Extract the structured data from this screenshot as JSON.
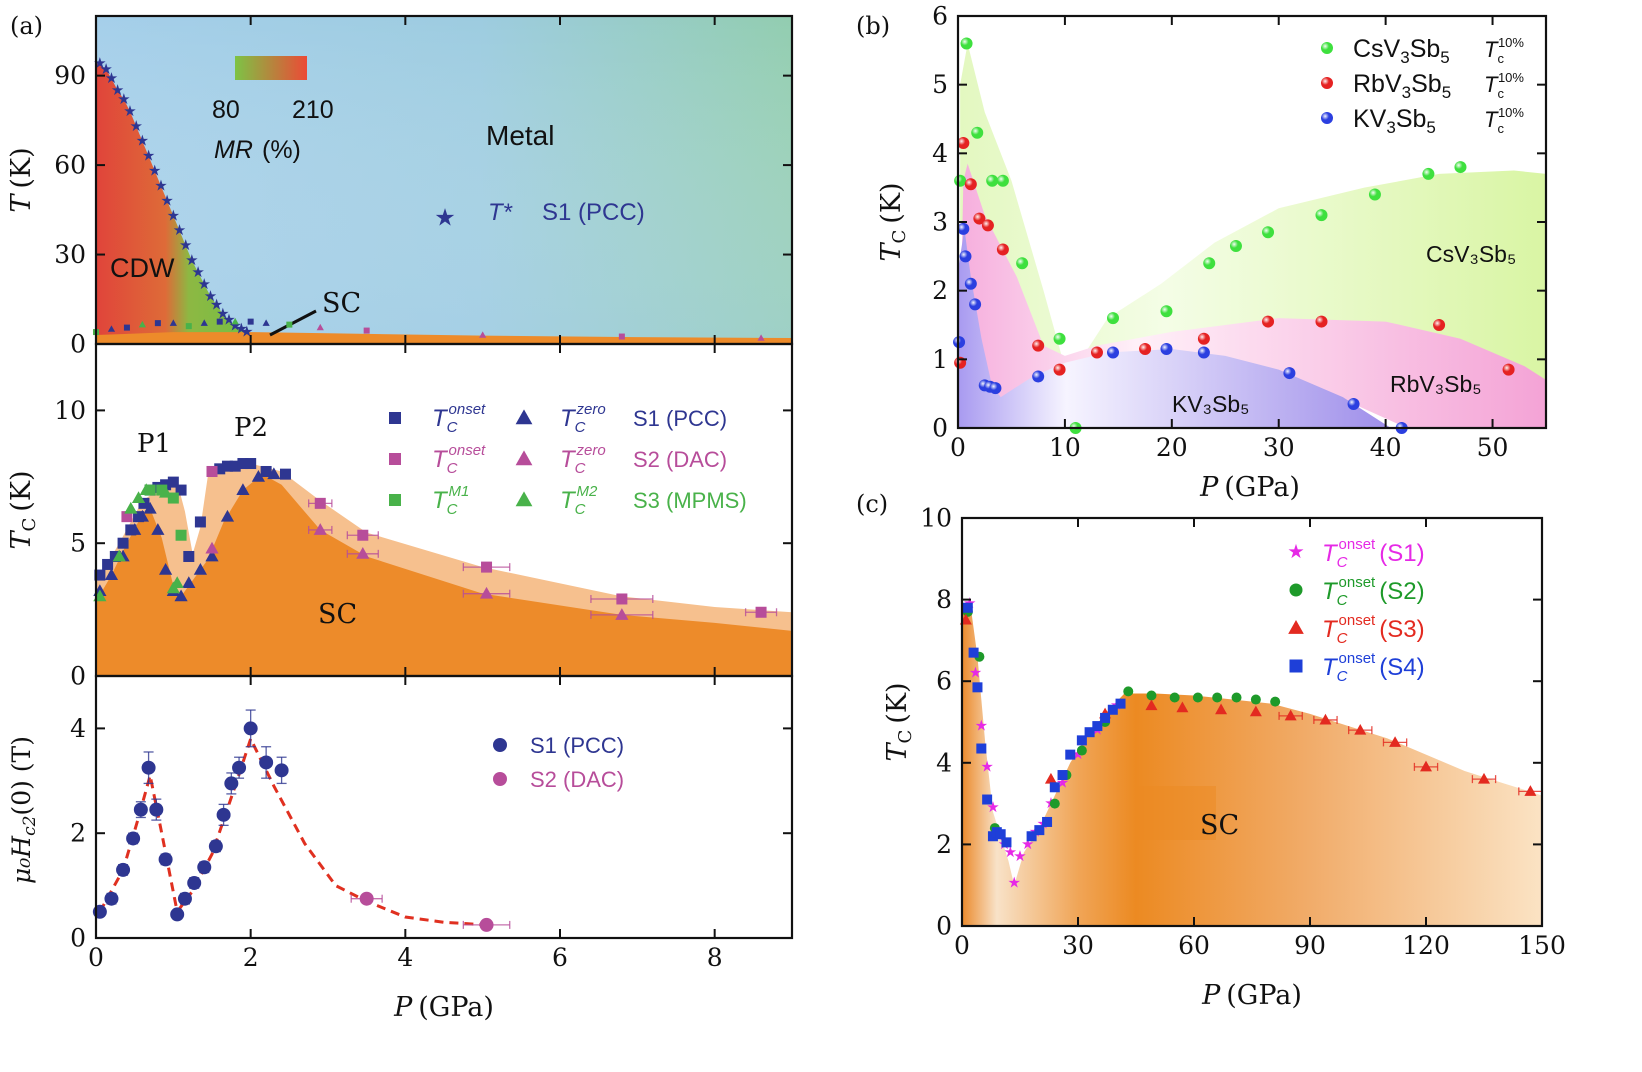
{
  "colors": {
    "sc_orange": "#ED8B2A",
    "sc_light": "#F6C08E",
    "metal_blue": "#A7CDE6",
    "metal_green": "#94CDB1",
    "cdw_red": "#E0523A",
    "cdw_green": "#7DBF45",
    "s1": "#2E3691",
    "s2": "#B74D9A",
    "s3": "#49B24A",
    "cs_green": "#3EE03E",
    "rb_red": "#E52222",
    "k_blue": "#2B3FE0",
    "c_s1": "#E629E6",
    "c_s2": "#1E9A2A",
    "c_s3": "#E32A20",
    "c_s4": "#1E3FD8",
    "dash_red": "#E03020"
  },
  "panel_labels": {
    "a": "(a)",
    "b": "(b)",
    "c": "(c)"
  },
  "chart_data": [
    {
      "id": "a_top",
      "type": "scatter",
      "xlim": [
        0,
        9
      ],
      "ylim": [
        0,
        110
      ],
      "ylabel_italic": "T",
      "ylabel_rest": "(K)",
      "yticks": [
        0,
        30,
        60,
        90
      ],
      "colorbar": {
        "min_label": "80",
        "max_label": "210",
        "title_italic": "MR",
        "title_rest": "(%)"
      },
      "region_labels": {
        "metal": "Metal",
        "cdw": "CDW",
        "sc": "SC"
      },
      "legend": {
        "symbol_label": "T*",
        "sample": "S1 (PCC)"
      },
      "tstar": {
        "x": [
          0.05,
          0.13,
          0.2,
          0.28,
          0.36,
          0.44,
          0.52,
          0.6,
          0.68,
          0.76,
          0.84,
          0.92,
          1.0,
          1.08,
          1.16,
          1.24,
          1.32,
          1.4,
          1.48,
          1.56,
          1.64,
          1.72,
          1.8,
          1.88,
          1.95
        ],
        "y": [
          94,
          92,
          89,
          85,
          82,
          78,
          73,
          68,
          63,
          58,
          53,
          48,
          43,
          38,
          33,
          28,
          24,
          20,
          16,
          13,
          10,
          8,
          6,
          5,
          4
        ]
      },
      "sc_line": {
        "x": [
          0,
          0.2,
          0.4,
          0.6,
          0.8,
          1.0,
          1.2,
          1.4,
          1.6,
          1.8,
          2.0,
          2.2,
          2.5,
          2.9,
          3.5,
          5.0,
          6.8,
          8.6
        ],
        "y": [
          4,
          5,
          5.5,
          6.5,
          7,
          7,
          6,
          7,
          7.5,
          7.5,
          7.5,
          7,
          6.5,
          5.5,
          4.5,
          3,
          2.5,
          2
        ]
      }
    },
    {
      "id": "a_mid",
      "type": "scatter",
      "xlim": [
        0,
        9
      ],
      "ylim": [
        0,
        12.5
      ],
      "ylabel_italic": "T",
      "ylabel_sub": "C",
      "ylabel_rest": "(K)",
      "yticks": [
        0,
        5,
        10
      ],
      "peak_labels": [
        "P1",
        "P2"
      ],
      "region_label": "SC",
      "legend": {
        "rows": [
          {
            "sym1": "square",
            "sub1": "C",
            "sup1": "onset",
            "sym2": "triangle",
            "sub2": "C",
            "sup2": "zero",
            "sample": "S1 (PCC)",
            "color": "#2E3691"
          },
          {
            "sym1": "square",
            "sub1": "C",
            "sup1": "onset",
            "sym2": "triangle",
            "sub2": "C",
            "sup2": "zero",
            "sample": "S2 (DAC)",
            "color": "#B74D9A"
          },
          {
            "sym1": "square",
            "sub1": "C",
            "sup1": "M1",
            "sym2": "triangle",
            "sub2": "C",
            "sup2": "M2",
            "sample": "S3 (MPMS)",
            "color": "#49B24A"
          }
        ]
      },
      "series": [
        {
          "name": "S1 onset",
          "marker": "square",
          "color": "#2E3691",
          "x": [
            0.05,
            0.15,
            0.25,
            0.35,
            0.45,
            0.55,
            0.62,
            0.7,
            0.8,
            0.9,
            1.0,
            1.1,
            1.2,
            1.35,
            1.5,
            1.6,
            1.7,
            1.8,
            1.9,
            2.0,
            2.2,
            2.45
          ],
          "y": [
            3.8,
            4.2,
            4.5,
            5.0,
            5.5,
            6.0,
            6.5,
            7.0,
            7.1,
            7.2,
            7.3,
            7.0,
            4.5,
            5.8,
            7.7,
            7.8,
            7.9,
            7.9,
            8.0,
            8.0,
            7.7,
            7.6
          ]
        },
        {
          "name": "S1 zero",
          "marker": "triangle",
          "color": "#2E3691",
          "x": [
            0.05,
            0.2,
            0.35,
            0.5,
            0.6,
            0.7,
            0.8,
            0.9,
            1.0,
            1.1,
            1.2,
            1.35,
            1.5,
            1.7,
            1.9,
            2.1,
            2.3
          ],
          "y": [
            3.2,
            3.8,
            4.5,
            5.5,
            6.0,
            6.3,
            5.5,
            4.0,
            3.2,
            3.0,
            3.5,
            4.0,
            4.5,
            6.0,
            7.0,
            7.5,
            7.6
          ]
        },
        {
          "name": "S2 onset",
          "marker": "square",
          "color": "#B74D9A",
          "x": [
            0.4,
            1.5,
            2.9,
            3.45,
            5.05,
            6.8,
            8.6
          ],
          "y": [
            6.0,
            7.7,
            6.5,
            5.3,
            4.1,
            2.9,
            2.4
          ],
          "xerr": [
            0,
            0,
            0.15,
            0.2,
            0.3,
            0.4,
            0.2
          ]
        },
        {
          "name": "S2 zero",
          "marker": "triangle",
          "color": "#B74D9A",
          "x": [
            1.5,
            2.9,
            3.45,
            5.05,
            6.8
          ],
          "y": [
            4.8,
            5.5,
            4.6,
            3.1,
            2.3
          ],
          "xerr": [
            0,
            0.15,
            0.2,
            0.3,
            0.4
          ]
        },
        {
          "name": "S3 M1",
          "marker": "square",
          "color": "#49B24A",
          "x": [
            0.7,
            0.85,
            1.0,
            1.1
          ],
          "y": [
            7.0,
            7.0,
            6.7,
            5.3
          ]
        },
        {
          "name": "S3 M2",
          "marker": "triangle",
          "color": "#49B24A",
          "x": [
            0.05,
            0.3,
            0.45,
            0.55,
            0.65,
            0.9,
            1.05,
            1.0
          ],
          "y": [
            3.0,
            4.5,
            6.3,
            6.7,
            7.0,
            6.9,
            3.5,
            3.3
          ]
        }
      ]
    },
    {
      "id": "a_bot",
      "type": "scatter",
      "xlim": [
        0,
        9
      ],
      "ylim": [
        0,
        5
      ],
      "ylabel_text": "μ₀H",
      "ylabel_sub": "c2",
      "ylabel_rest": "(0) (T)",
      "yticks": [
        0,
        2,
        4
      ],
      "xticks": [
        0,
        2,
        4,
        6,
        8
      ],
      "xlabel_italic": "P",
      "xlabel_rest": "(GPa)",
      "legend": [
        {
          "label": "S1 (PCC)",
          "color": "#2E3691"
        },
        {
          "label": "S2 (DAC)",
          "color": "#B74D9A"
        }
      ],
      "series": [
        {
          "name": "S1 (PCC)",
          "marker": "circle",
          "color": "#2E3691",
          "x": [
            0.05,
            0.2,
            0.35,
            0.48,
            0.58,
            0.68,
            0.78,
            0.9,
            1.05,
            1.15,
            1.27,
            1.4,
            1.55,
            1.65,
            1.75,
            1.85,
            2.0,
            2.2,
            2.4
          ],
          "y": [
            0.5,
            0.75,
            1.3,
            1.9,
            2.45,
            3.25,
            2.45,
            1.5,
            0.45,
            0.75,
            1.05,
            1.35,
            1.75,
            2.35,
            2.95,
            3.25,
            4.0,
            3.35,
            3.2
          ],
          "yerr": [
            0,
            0.1,
            0.1,
            0.1,
            0.15,
            0.3,
            0.2,
            0.1,
            0.05,
            0.1,
            0.1,
            0.1,
            0.1,
            0.2,
            0.2,
            0.2,
            0.35,
            0.3,
            0.25
          ]
        },
        {
          "name": "S2 (DAC)",
          "marker": "circle",
          "color": "#B74D9A",
          "x": [
            3.5,
            5.05
          ],
          "y": [
            0.75,
            0.25
          ],
          "xerr": [
            0.2,
            0.3
          ]
        }
      ],
      "guide": {
        "x": [
          0.05,
          0.35,
          0.55,
          0.7,
          0.85,
          1.05,
          1.25,
          1.5,
          1.8,
          2.0,
          2.3,
          2.7,
          3.1,
          3.5,
          4.0,
          4.5,
          5.05
        ],
        "y": [
          0.5,
          1.3,
          2.3,
          3.1,
          2.0,
          0.5,
          0.9,
          1.6,
          2.9,
          3.8,
          2.9,
          1.8,
          1.0,
          0.7,
          0.4,
          0.3,
          0.25
        ]
      }
    },
    {
      "id": "b",
      "type": "scatter",
      "xlim": [
        0,
        55
      ],
      "ylim": [
        0,
        6
      ],
      "xticks": [
        0,
        10,
        20,
        30,
        40,
        50
      ],
      "yticks": [
        0,
        1,
        2,
        3,
        4,
        5,
        6
      ],
      "xlabel_italic": "P",
      "xlabel_rest": "(GPa)",
      "ylabel_italic": "T",
      "ylabel_sub": "C",
      "ylabel_rest": "(K)",
      "region_labels": {
        "cs": "CsV₃Sb₅",
        "rb": "RbV₃Sb₅",
        "k": "KV₃Sb₅"
      },
      "legend": [
        {
          "base": "CsV",
          "s1": "3",
          "mid": "Sb",
          "s2": "5",
          "tc_sup": "10%",
          "color": "#3EE03E"
        },
        {
          "base": "RbV",
          "s1": "3",
          "mid": "Sb",
          "s2": "5",
          "tc_sup": "10%",
          "color": "#E52222"
        },
        {
          "base": "KV",
          "s1": "3",
          "mid": "Sb",
          "s2": "5",
          "tc_sup": "10%",
          "color": "#2B3FE0"
        }
      ],
      "series": [
        {
          "name": "CsV3Sb5",
          "color": "#3EE03E",
          "x": [
            0.2,
            0.8,
            1.8,
            3.2,
            4.2,
            6.0,
            9.5,
            11.0,
            14.5,
            19.5,
            23.5,
            26.0,
            29.0,
            34.0,
            39.0,
            44.0,
            47.0
          ],
          "y": [
            3.6,
            5.6,
            4.3,
            3.6,
            3.6,
            2.4,
            1.3,
            0.0,
            1.6,
            1.7,
            2.4,
            2.65,
            2.85,
            3.1,
            3.4,
            3.7,
            3.8
          ]
        },
        {
          "name": "RbV3Sb5",
          "color": "#E52222",
          "x": [
            0.2,
            0.5,
            1.2,
            2.0,
            2.8,
            4.2,
            7.5,
            9.5,
            13.0,
            17.5,
            23.0,
            29.0,
            34.0,
            45.0,
            51.5
          ],
          "y": [
            0.95,
            4.15,
            3.55,
            3.05,
            2.95,
            2.6,
            1.2,
            0.85,
            1.1,
            1.15,
            1.3,
            1.55,
            1.55,
            1.5,
            0.85
          ]
        },
        {
          "name": "KV3Sb5",
          "color": "#2B3FE0",
          "x": [
            0.1,
            0.5,
            0.7,
            1.2,
            1.6,
            2.5,
            3.0,
            3.5,
            7.5,
            14.5,
            19.5,
            23.0,
            31.0,
            37.0,
            41.5
          ],
          "y": [
            1.25,
            2.9,
            2.5,
            2.1,
            1.8,
            0.62,
            0.6,
            0.58,
            0.75,
            1.1,
            1.15,
            1.1,
            0.8,
            0.35,
            0.0
          ]
        }
      ]
    },
    {
      "id": "c",
      "type": "scatter",
      "xlim": [
        0,
        150
      ],
      "ylim": [
        0,
        10
      ],
      "xticks": [
        0,
        30,
        60,
        90,
        120,
        150
      ],
      "yticks": [
        0,
        2,
        4,
        6,
        8,
        10
      ],
      "xlabel_italic": "P",
      "xlabel_rest": "(GPa)",
      "ylabel_italic": "T",
      "ylabel_sub": "C",
      "ylabel_rest": "(K)",
      "region_label": "SC",
      "legend": [
        {
          "sup": "onset",
          "sample": "(S1)",
          "color": "#E629E6"
        },
        {
          "sup": "onset",
          "sample": "(S2)",
          "color": "#1E9A2A"
        },
        {
          "sup": "onset",
          "sample": "(S3)",
          "color": "#E32A20"
        },
        {
          "sup": "onset",
          "sample": "(S4)",
          "color": "#1E3FD8"
        }
      ],
      "series": [
        {
          "name": "S1",
          "marker": "star",
          "color": "#E629E6",
          "x": [
            2,
            3.5,
            5,
            6.5,
            8,
            9.5,
            11,
            12.5,
            13.5,
            15,
            17,
            19,
            21,
            23,
            26,
            30,
            35,
            40
          ],
          "y": [
            7.9,
            6.2,
            4.9,
            3.9,
            2.9,
            2.2,
            2.0,
            1.8,
            1.05,
            1.7,
            2.0,
            2.3,
            2.5,
            3.0,
            3.5,
            4.2,
            4.8,
            5.4
          ]
        },
        {
          "name": "S2",
          "marker": "circle",
          "color": "#1E9A2A",
          "x": [
            1.5,
            4.5,
            8.5,
            24,
            27,
            31,
            37,
            43,
            49,
            55,
            61,
            66,
            71,
            76,
            81
          ],
          "y": [
            7.7,
            6.6,
            2.4,
            3.0,
            3.7,
            4.3,
            5.0,
            5.75,
            5.65,
            5.6,
            5.6,
            5.6,
            5.6,
            5.55,
            5.5
          ]
        },
        {
          "name": "S3",
          "marker": "triangle",
          "color": "#E32A20",
          "x": [
            1,
            23,
            37,
            49,
            57,
            67,
            76,
            85,
            94,
            103,
            112,
            120,
            135,
            147
          ],
          "y": [
            7.5,
            3.6,
            5.2,
            5.4,
            5.35,
            5.3,
            5.25,
            5.15,
            5.05,
            4.8,
            4.5,
            3.9,
            3.6,
            3.3
          ]
        },
        {
          "name": "S4",
          "marker": "square",
          "color": "#1E3FD8",
          "x": [
            1.5,
            3,
            4,
            5,
            6.5,
            8,
            9,
            10,
            11.5,
            18,
            20,
            22,
            24,
            26,
            28,
            31,
            33,
            35,
            37,
            39,
            41
          ],
          "y": [
            7.8,
            6.7,
            5.85,
            4.35,
            3.1,
            2.2,
            2.3,
            2.25,
            2.05,
            2.2,
            2.35,
            2.55,
            3.4,
            3.7,
            4.2,
            4.55,
            4.75,
            4.9,
            5.1,
            5.3,
            5.45
          ]
        }
      ]
    }
  ]
}
